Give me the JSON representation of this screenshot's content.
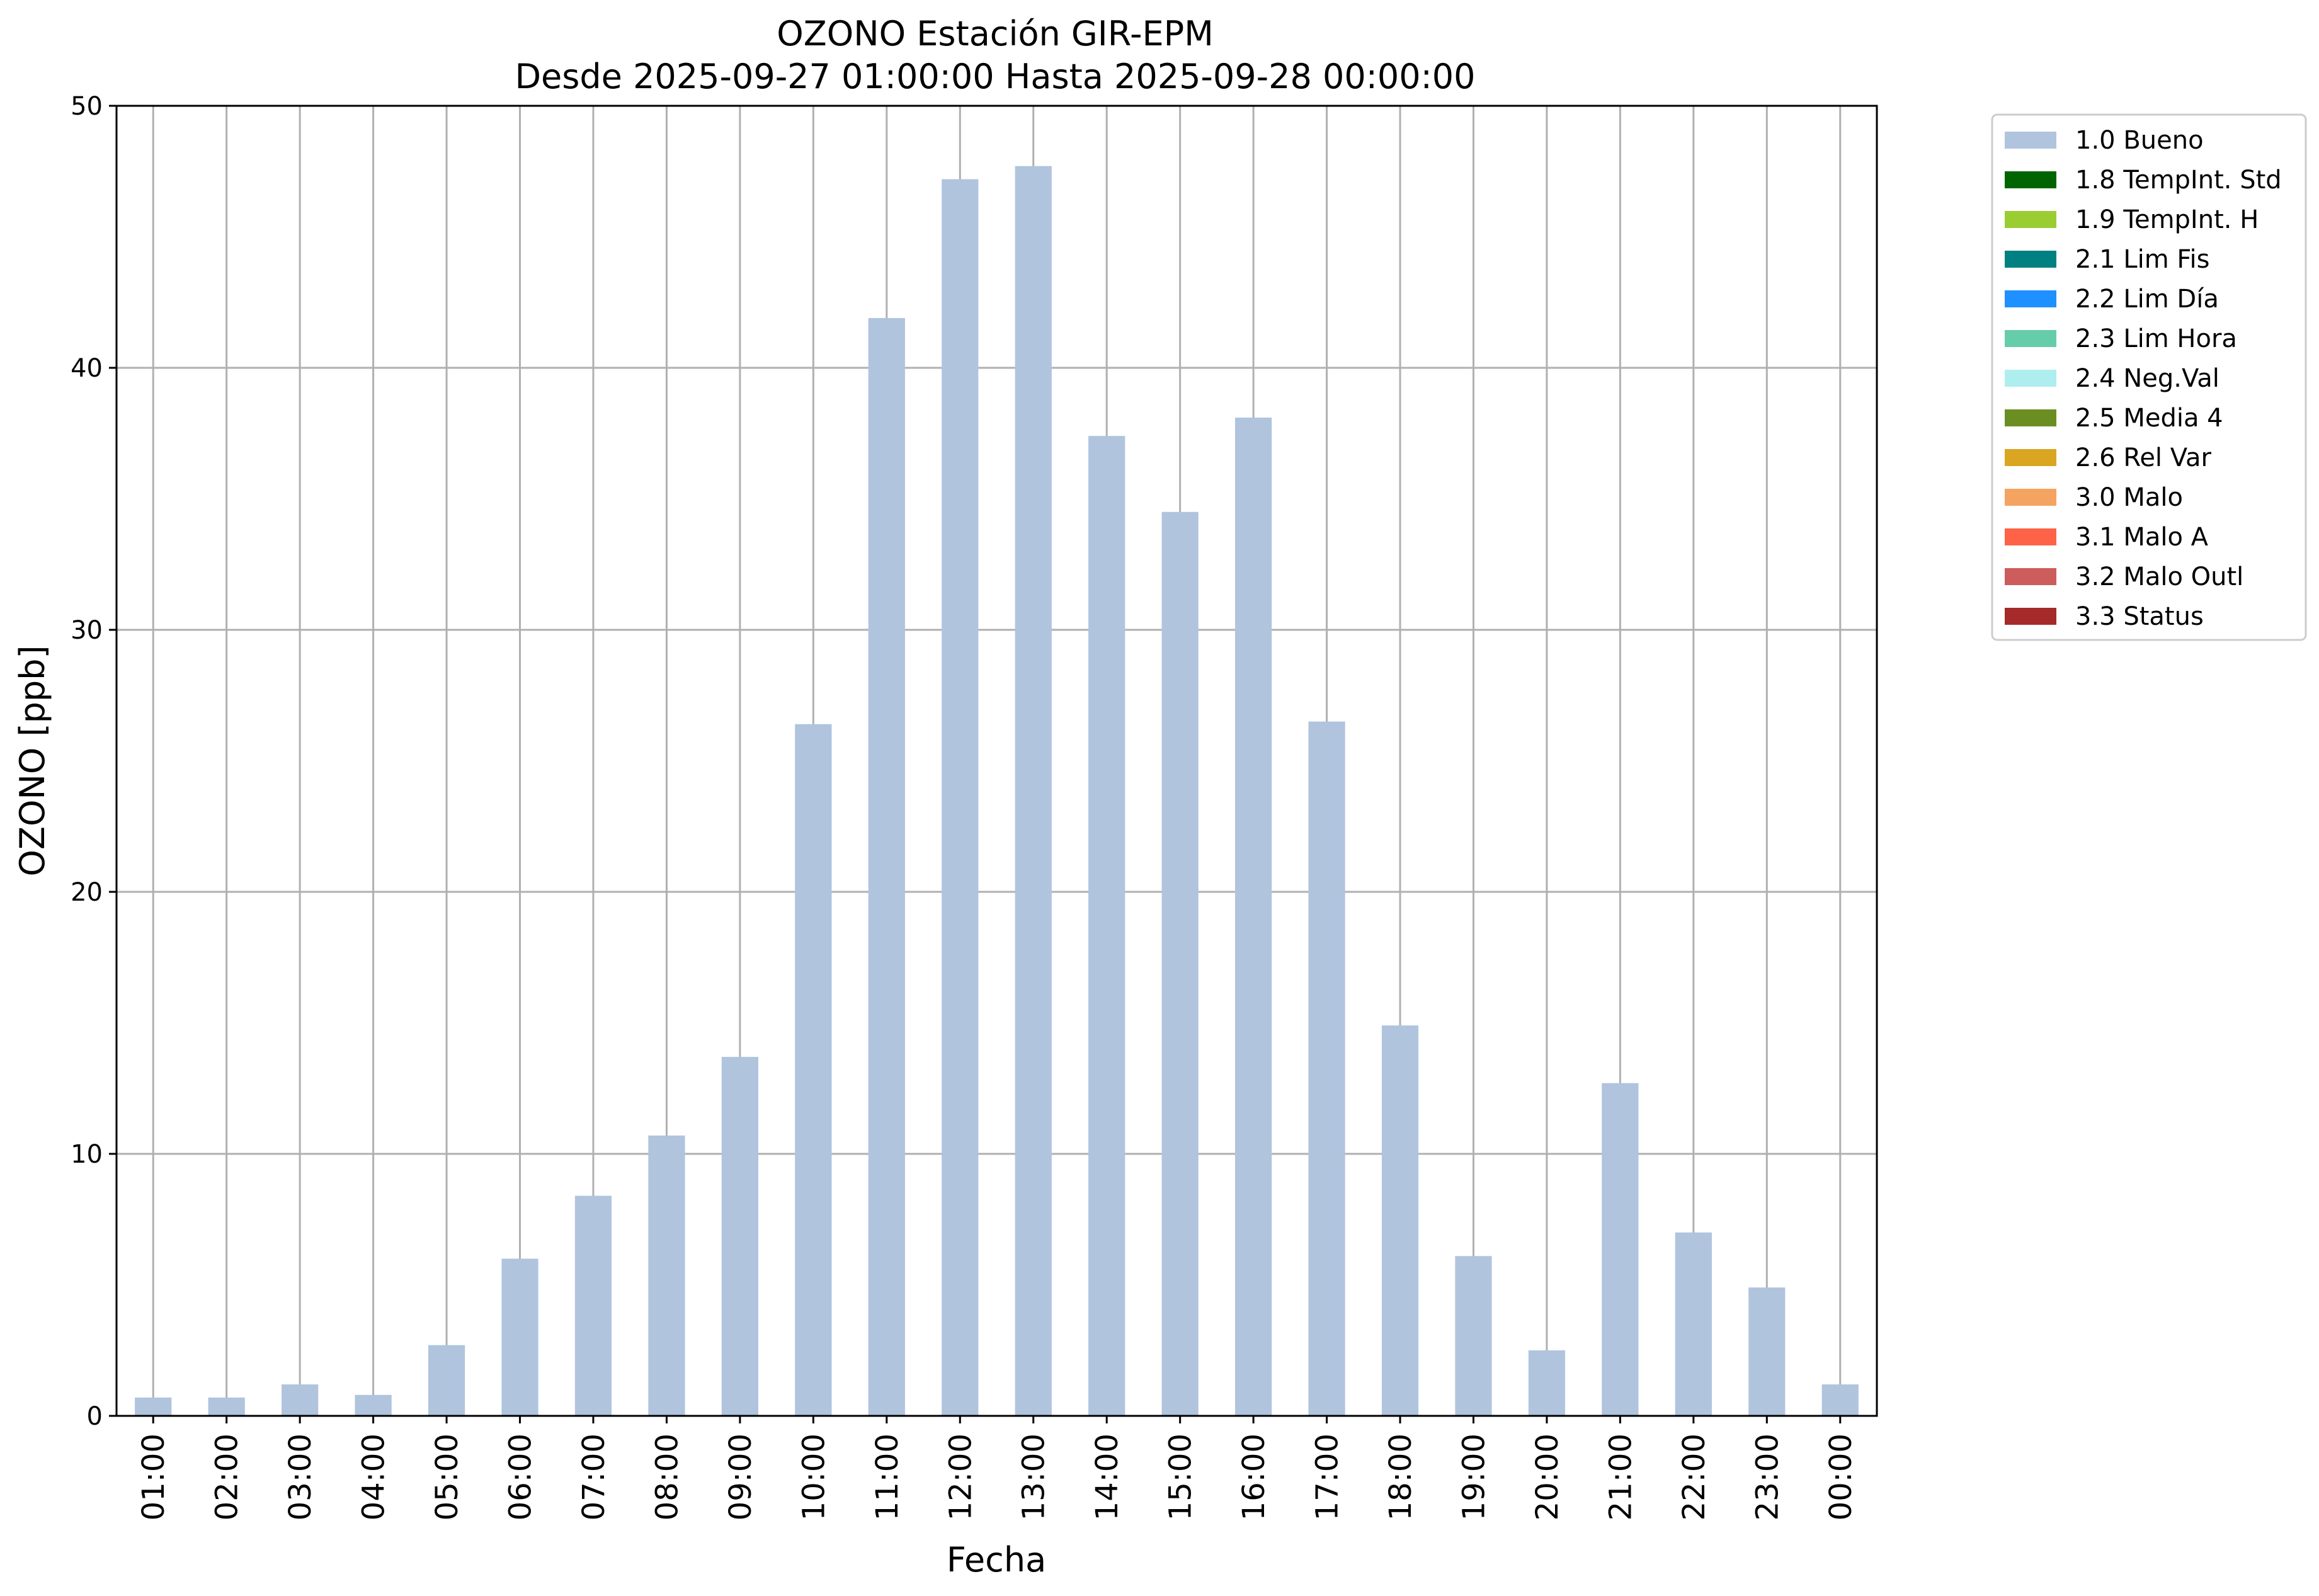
{
  "chart_data": {
    "type": "bar",
    "title": "OZONO Estación GIR-EPM",
    "subtitle": "Desde 2025-09-27 01:00:00 Hasta 2025-09-28 00:00:00",
    "xlabel": "Fecha",
    "ylabel": "OZONO [ppb]",
    "ylim": [
      0,
      50
    ],
    "yticks": [
      "0",
      "10",
      "20",
      "30",
      "40",
      "50"
    ],
    "grid": true,
    "legend_position": "outside-top-right",
    "categories": [
      "01:00",
      "02:00",
      "03:00",
      "04:00",
      "05:00",
      "06:00",
      "07:00",
      "08:00",
      "09:00",
      "10:00",
      "11:00",
      "12:00",
      "13:00",
      "14:00",
      "15:00",
      "16:00",
      "17:00",
      "18:00",
      "19:00",
      "20:00",
      "21:00",
      "22:00",
      "23:00",
      "00:00"
    ],
    "series": [
      {
        "name": "1.0 Bueno",
        "color": "#b0c4de",
        "values": [
          0.7,
          0.7,
          1.2,
          0.8,
          2.7,
          6.0,
          8.4,
          10.7,
          13.7,
          26.4,
          41.9,
          47.2,
          47.7,
          37.4,
          34.5,
          38.1,
          26.5,
          14.9,
          6.1,
          2.5,
          12.7,
          7.0,
          4.9,
          1.2
        ]
      }
    ],
    "legend": [
      {
        "label": "1.0 Bueno",
        "color": "#b0c4de"
      },
      {
        "label": "1.8 TempInt. Std",
        "color": "#006400"
      },
      {
        "label": "1.9 TempInt. H",
        "color": "#9acd32"
      },
      {
        "label": "2.1 Lim Fis",
        "color": "#008080"
      },
      {
        "label": "2.2 Lim Día",
        "color": "#1e90ff"
      },
      {
        "label": "2.3 Lim Hora",
        "color": "#66cdaa"
      },
      {
        "label": "2.4 Neg.Val",
        "color": "#afeeee"
      },
      {
        "label": "2.5 Media 4",
        "color": "#6b8e23"
      },
      {
        "label": "2.6 Rel Var",
        "color": "#daa520"
      },
      {
        "label": "3.0 Malo",
        "color": "#f4a460"
      },
      {
        "label": "3.1 Malo A",
        "color": "#ff6347"
      },
      {
        "label": "3.2 Malo Outl",
        "color": "#cd5c5c"
      },
      {
        "label": "3.3 Status",
        "color": "#a52a2a"
      }
    ]
  }
}
